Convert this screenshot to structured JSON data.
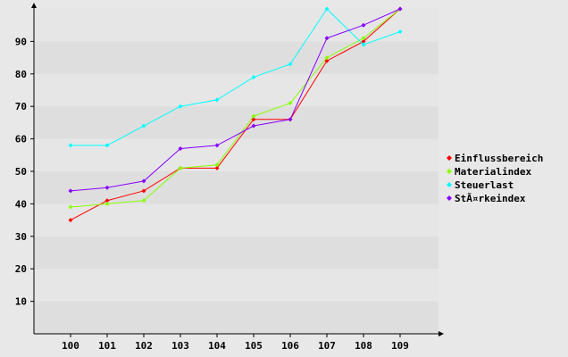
{
  "chart_data": {
    "type": "line",
    "title": "",
    "xlabel": "",
    "ylabel": "",
    "categories": [
      "100",
      "101",
      "102",
      "103",
      "104",
      "105",
      "106",
      "107",
      "108",
      "109"
    ],
    "ylim": [
      0,
      100
    ],
    "y_ticks": [
      10,
      20,
      30,
      40,
      50,
      60,
      70,
      80,
      90
    ],
    "grid": "horizontal alternating bands",
    "legend_position": "right",
    "series": [
      {
        "name": "Einflussbereich",
        "color": "#ff0000",
        "values": [
          35,
          41,
          44,
          51,
          51,
          66,
          66,
          84,
          90,
          100
        ]
      },
      {
        "name": "Materialindex",
        "color": "#88ff00",
        "values": [
          39,
          40,
          41,
          51,
          52,
          67,
          71,
          85,
          91,
          100
        ]
      },
      {
        "name": "Steuerlast",
        "color": "#00ffff",
        "values": [
          58,
          58,
          64,
          70,
          72,
          79,
          83,
          100,
          89,
          93
        ]
      },
      {
        "name": "StÃ¤rkeindex",
        "color": "#8800ff",
        "values": [
          44,
          45,
          47,
          57,
          58,
          64,
          66,
          91,
          95,
          100
        ]
      }
    ]
  }
}
